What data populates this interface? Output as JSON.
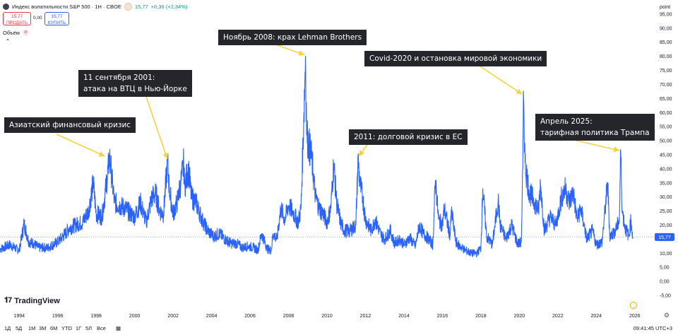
{
  "header": {
    "title": "Индекс волатильности S&P 500 · 1Н · CBOE",
    "last": "15,77",
    "change": "+0,36 (+2,34%)"
  },
  "trade": {
    "sell_price": "15,77",
    "sell_label": "ПРОДАТЬ",
    "spread": "0,00",
    "buy_price": "15,77",
    "buy_label": "КУПИТЬ"
  },
  "volume_label": "Объём",
  "logo_text": "TradingView",
  "timeframes": [
    "1Д",
    "5Д",
    "1М",
    "3М",
    "6М",
    "YTD",
    "1Г",
    "5Л",
    "Все"
  ],
  "clock": "09:41:45 UTC+3",
  "annotations": [
    {
      "line1": "Азиатский финансовый кризис",
      "line2": ""
    },
    {
      "line1": "11 сентября 2001:",
      "line2": "атака на ВТЦ в Нью-Йорке"
    },
    {
      "line1": "Ноябрь 2008: крах Lehman Brothers",
      "line2": ""
    },
    {
      "line1": "2011: долговой кризис в ЕС",
      "line2": ""
    },
    {
      "line1": "Covid-2020 и остановка мировой экономики",
      "line2": ""
    },
    {
      "line1": "Апрель 2025:",
      "line2": "тарифная политика Трампа"
    }
  ],
  "colors": {
    "line": "#2962ff",
    "price_tag": "#2962ff",
    "annotation_bg": "#25262b",
    "arrow": "#f7d23e"
  },
  "chart_data": {
    "type": "line",
    "x_ticks": [
      "1994",
      "1996",
      "1998",
      "2000",
      "2002",
      "2004",
      "2006",
      "2008",
      "2010",
      "2012",
      "2014",
      "2016",
      "2018",
      "2020",
      "2022",
      "2024",
      "2026"
    ],
    "y_ticks": [
      "-5,00",
      "0,00",
      "5,00",
      "10,00",
      "15,00",
      "20,00",
      "25,00",
      "30,00",
      "35,00",
      "40,00",
      "45,00",
      "50,00",
      "55,00",
      "60,00",
      "65,00",
      "70,00",
      "75,00",
      "80,00",
      "85,00",
      "90,00",
      "95,00"
    ],
    "y_unit": "point",
    "xlim": [
      1993.0,
      2027.0
    ],
    "ylim": [
      -8.0,
      98.5
    ],
    "last_value": "15,77",
    "series": [
      {
        "x": [
          1993.0,
          1993.5,
          1994.0,
          1994.25,
          1994.5,
          1994.75,
          1995.0,
          1995.5,
          1996.0,
          1996.4,
          1996.6,
          1996.9,
          1997.3,
          1997.6,
          1997.85,
          1998.0,
          1998.3,
          1998.5,
          1998.7,
          1998.8,
          1998.95,
          1999.2,
          1999.5,
          1999.8,
          2000.0,
          2000.3,
          2000.6,
          2000.9,
          2001.1,
          2001.3,
          2001.5,
          2001.71,
          2001.8,
          2002.0,
          2002.2,
          2002.4,
          2002.55,
          2002.6,
          2002.8,
          2002.95,
          2003.2,
          2003.5,
          2003.8,
          2004.1,
          2004.4,
          2004.7,
          2005.0,
          2005.3,
          2005.6,
          2005.9,
          2006.2,
          2006.4,
          2006.6,
          2006.9,
          2007.1,
          2007.2,
          2007.4,
          2007.6,
          2007.8,
          2008.0,
          2008.2,
          2008.5,
          2008.65,
          2008.8,
          2008.88,
          2008.95,
          2009.05,
          2009.2,
          2009.4,
          2009.6,
          2009.8,
          2010.0,
          2010.2,
          2010.35,
          2010.5,
          2010.7,
          2010.9,
          2011.2,
          2011.5,
          2011.62,
          2011.7,
          2011.85,
          2012.0,
          2012.3,
          2012.5,
          2012.8,
          2013.0,
          2013.3,
          2013.5,
          2013.8,
          2014.0,
          2014.3,
          2014.6,
          2014.8,
          2015.0,
          2015.3,
          2015.5,
          2015.64,
          2015.8,
          2016.0,
          2016.1,
          2016.4,
          2016.47,
          2016.7,
          2016.9,
          2017.2,
          2017.5,
          2017.8,
          2018.0,
          2018.1,
          2018.3,
          2018.6,
          2018.9,
          2019.0,
          2019.3,
          2019.6,
          2019.9,
          2020.0,
          2020.1,
          2020.18,
          2020.22,
          2020.3,
          2020.5,
          2020.8,
          2021.0,
          2021.1,
          2021.3,
          2021.6,
          2021.9,
          2022.2,
          2022.4,
          2022.6,
          2022.8,
          2023.0,
          2023.2,
          2023.5,
          2023.8,
          2024.0,
          2024.3,
          2024.59,
          2024.7,
          2025.0,
          2025.2,
          2025.27,
          2025.35,
          2025.5,
          2025.7,
          2025.8,
          2025.9
        ],
        "y": [
          11.5,
          13.0,
          11.0,
          20.5,
          14.0,
          13.5,
          12.0,
          12.0,
          14.0,
          17.0,
          19.0,
          20.0,
          21.0,
          25.0,
          35.0,
          24.0,
          23.0,
          33.0,
          44.0,
          38.0,
          28.0,
          27.0,
          26.0,
          24.0,
          23.0,
          28.0,
          21.0,
          30.0,
          31.0,
          25.0,
          24.0,
          43.0,
          33.0,
          24.0,
          28.0,
          35.0,
          42.0,
          34.0,
          40.0,
          30.0,
          28.0,
          22.0,
          18.0,
          16.0,
          17.0,
          15.0,
          13.5,
          13.5,
          12.0,
          12.5,
          12.0,
          11.0,
          17.0,
          11.5,
          11.0,
          17.0,
          15.0,
          26.0,
          22.0,
          27.0,
          25.0,
          21.0,
          26.0,
          60.0,
          80.0,
          52.0,
          49.0,
          44.0,
          30.0,
          26.0,
          24.0,
          21.0,
          26.0,
          42.0,
          28.0,
          21.0,
          18.0,
          18.0,
          20.0,
          44.0,
          35.0,
          30.0,
          22.0,
          18.0,
          22.0,
          16.5,
          15.0,
          18.0,
          13.5,
          15.0,
          13.0,
          15.5,
          12.5,
          20.0,
          17.0,
          15.0,
          13.0,
          36.0,
          22.0,
          20.0,
          26.0,
          16.0,
          25.0,
          14.0,
          12.5,
          11.0,
          10.0,
          10.0,
          12.0,
          33.0,
          16.0,
          13.0,
          29.0,
          20.0,
          15.0,
          20.0,
          13.5,
          13.5,
          14.0,
          40.0,
          66.0,
          42.0,
          32.0,
          28.0,
          25.0,
          35.0,
          18.0,
          23.0,
          20.0,
          30.0,
          33.0,
          28.0,
          32.0,
          22.0,
          26.0,
          15.0,
          18.0,
          13.0,
          14.0,
          35.0,
          16.0,
          18.0,
          22.0,
          46.0,
          25.0,
          19.0,
          16.0,
          22.0,
          15.77
        ]
      }
    ]
  }
}
